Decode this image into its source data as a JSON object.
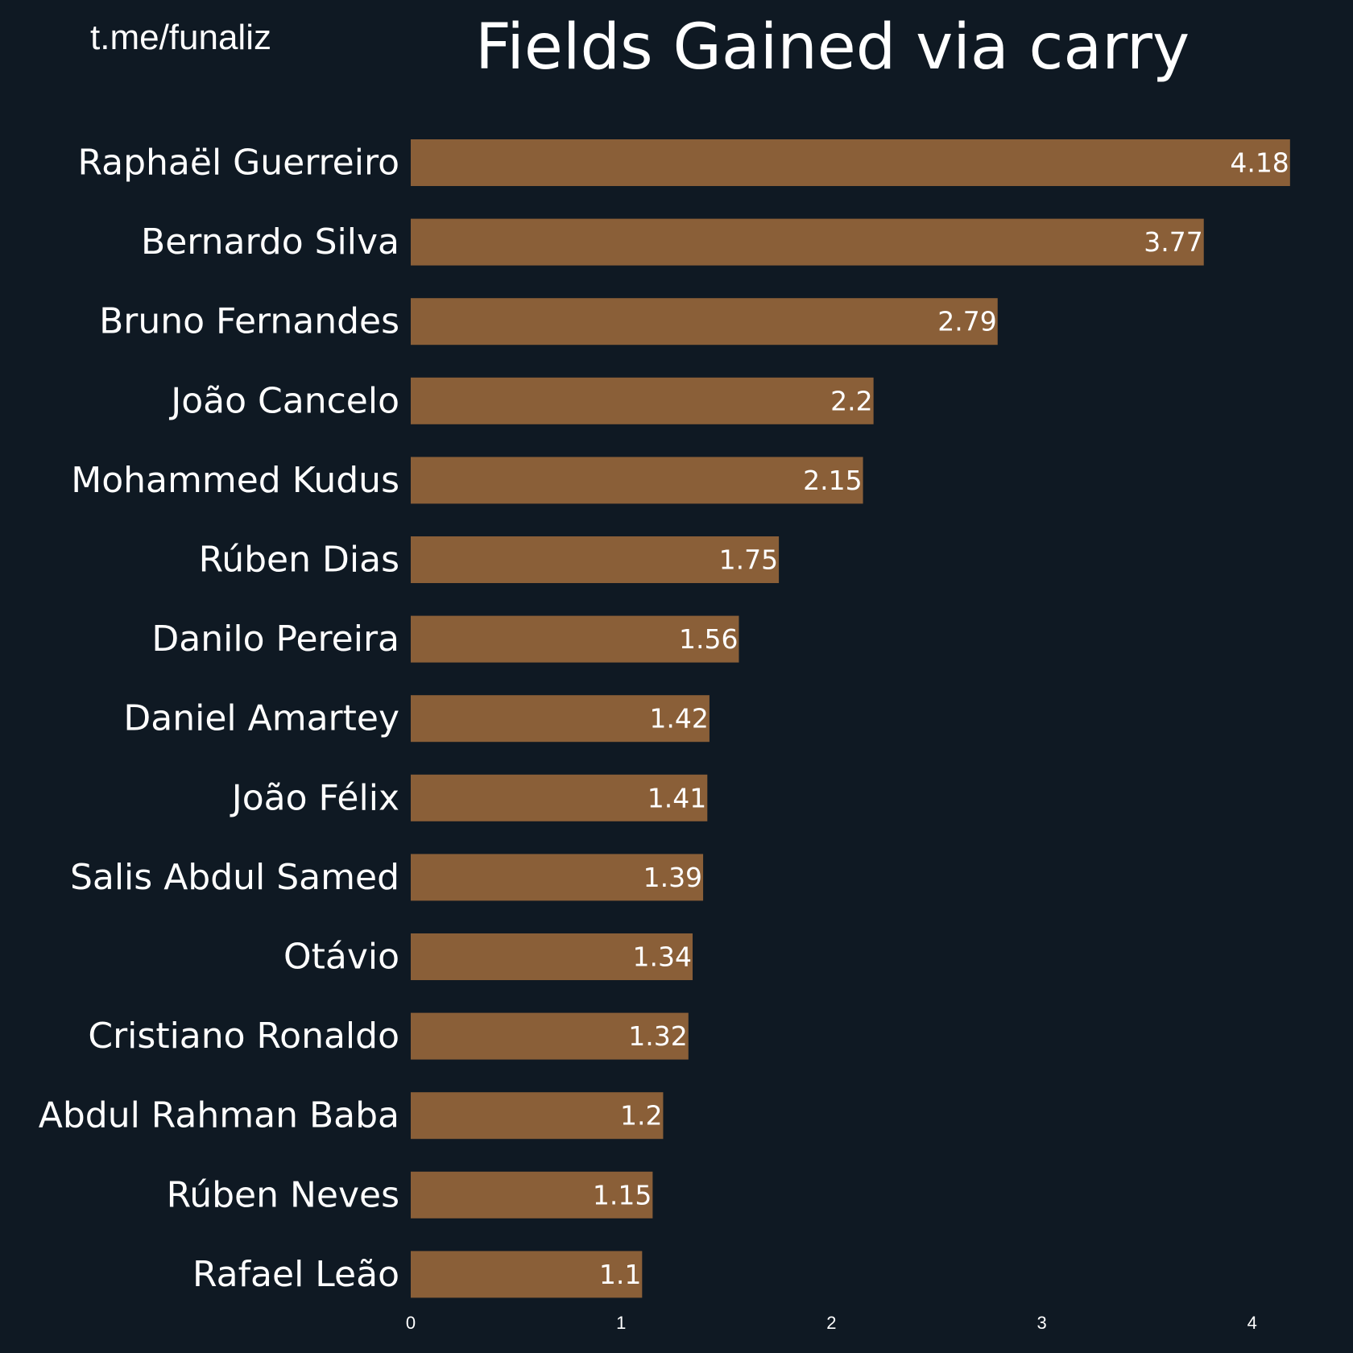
{
  "header": {
    "watermark": "t.me/funaliz"
  },
  "colors": {
    "background": "#0f1923",
    "bar": "#8a5f38",
    "text": "#ffffff"
  },
  "chart_data": {
    "type": "bar",
    "orientation": "horizontal",
    "title": "Fields Gained via carry",
    "xlabel": "",
    "ylabel": "",
    "categories": [
      "Raphaël Guerreiro",
      "Bernardo Silva",
      "Bruno Fernandes",
      "João Cancelo",
      "Mohammed Kudus",
      "Rúben Dias",
      "Danilo Pereira",
      "Daniel Amartey",
      "João Félix",
      "Salis Abdul Samed",
      "Otávio",
      "Cristiano Ronaldo",
      "Abdul Rahman Baba",
      "Rúben Neves",
      "Rafael Leão"
    ],
    "values": [
      4.18,
      3.77,
      2.79,
      2.2,
      2.15,
      1.75,
      1.56,
      1.42,
      1.41,
      1.39,
      1.34,
      1.32,
      1.2,
      1.15,
      1.1
    ],
    "value_labels": [
      "4.18",
      "3.77",
      "2.79",
      "2.2",
      "2.15",
      "1.75",
      "1.56",
      "1.42",
      "1.41",
      "1.39",
      "1.34",
      "1.32",
      "1.2",
      "1.15",
      "1.1"
    ],
    "x_ticks": [
      0,
      1,
      2,
      3,
      4
    ],
    "x_tick_labels": [
      "0",
      "1",
      "2",
      "3",
      "4"
    ],
    "xlim": [
      0,
      4.18
    ],
    "grid": false,
    "legend": "none"
  }
}
